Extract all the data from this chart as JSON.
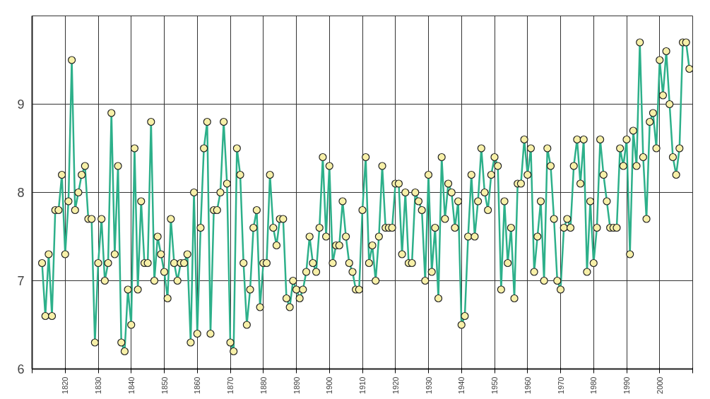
{
  "chart_data": {
    "type": "line",
    "x": [
      1813,
      1814,
      1815,
      1816,
      1817,
      1818,
      1819,
      1820,
      1821,
      1822,
      1823,
      1824,
      1825,
      1826,
      1827,
      1828,
      1829,
      1830,
      1831,
      1832,
      1833,
      1834,
      1835,
      1836,
      1837,
      1838,
      1839,
      1840,
      1841,
      1842,
      1843,
      1844,
      1845,
      1846,
      1847,
      1848,
      1849,
      1850,
      1851,
      1852,
      1853,
      1854,
      1855,
      1856,
      1857,
      1858,
      1859,
      1860,
      1861,
      1862,
      1863,
      1864,
      1865,
      1866,
      1867,
      1868,
      1869,
      1870,
      1871,
      1872,
      1873,
      1874,
      1875,
      1876,
      1877,
      1878,
      1879,
      1880,
      1881,
      1882,
      1883,
      1884,
      1885,
      1886,
      1887,
      1888,
      1889,
      1890,
      1891,
      1892,
      1893,
      1894,
      1895,
      1896,
      1897,
      1898,
      1899,
      1900,
      1901,
      1902,
      1903,
      1904,
      1905,
      1906,
      1907,
      1908,
      1909,
      1910,
      1911,
      1912,
      1913,
      1914,
      1915,
      1916,
      1917,
      1918,
      1919,
      1920,
      1921,
      1922,
      1923,
      1924,
      1925,
      1926,
      1927,
      1928,
      1929,
      1930,
      1931,
      1932,
      1933,
      1934,
      1935,
      1936,
      1937,
      1938,
      1939,
      1940,
      1941,
      1942,
      1943,
      1944,
      1945,
      1946,
      1947,
      1948,
      1949,
      1950,
      1951,
      1952,
      1953,
      1954,
      1955,
      1956,
      1957,
      1958,
      1959,
      1960,
      1961,
      1962,
      1963,
      1964,
      1965,
      1966,
      1967,
      1968,
      1969,
      1970,
      1971,
      1972,
      1973,
      1974,
      1975,
      1976,
      1977,
      1978,
      1979,
      1980,
      1981,
      1982,
      1983,
      1984,
      1985,
      1986,
      1987,
      1988,
      1989,
      1990,
      1991,
      1992,
      1993,
      1994,
      1995,
      1996,
      1997,
      1998,
      1999,
      2000,
      2001,
      2002,
      2003,
      2004,
      2005,
      2006,
      2007,
      2008,
      2009
    ],
    "series": [
      {
        "color": "#2db08a",
        "values": [
          7.2,
          6.6,
          7.3,
          6.6,
          7.8,
          7.8,
          8.2,
          7.3,
          7.9,
          9.5,
          7.8,
          8.0,
          8.2,
          8.3,
          7.7,
          7.7,
          6.3,
          7.2,
          7.7,
          7.0,
          7.2,
          8.9,
          7.3,
          8.3,
          6.3,
          6.2,
          6.9,
          6.5,
          8.5,
          6.9,
          7.9,
          7.2,
          7.2,
          8.8,
          7.0,
          7.5,
          7.3,
          7.1,
          6.8,
          7.7,
          7.2,
          7.0,
          7.2,
          7.2,
          7.3,
          6.3,
          8.0,
          6.4,
          7.6,
          8.5,
          8.8,
          6.4,
          7.8,
          7.8,
          8.0,
          8.8,
          8.1,
          6.3,
          6.2,
          8.5,
          8.2,
          7.2,
          6.5,
          6.9,
          7.6,
          7.8,
          6.7,
          7.2,
          7.2,
          8.2,
          7.6,
          7.4,
          7.7,
          7.7,
          6.8,
          6.7,
          7.0,
          6.9,
          6.8,
          6.9,
          7.1,
          7.5,
          7.2,
          7.1,
          7.6,
          8.4,
          7.5,
          8.3,
          7.2,
          7.4,
          7.4,
          7.9,
          7.5,
          7.2,
          7.1,
          6.9,
          6.9,
          7.8,
          8.4,
          7.2,
          7.4,
          7.0,
          7.5,
          8.3,
          7.6,
          7.6,
          7.6,
          8.1,
          8.1,
          7.3,
          8.0,
          7.2,
          7.2,
          8.0,
          7.9,
          7.8,
          7.0,
          8.2,
          7.1,
          7.6,
          6.8,
          8.4,
          7.7,
          8.1,
          8.0,
          7.6,
          7.9,
          6.5,
          6.6,
          7.5,
          8.2,
          7.5,
          7.9,
          8.5,
          8.0,
          7.8,
          8.2,
          8.4,
          8.3,
          6.9,
          7.9,
          7.2,
          7.6,
          6.8,
          8.1,
          8.1,
          8.6,
          8.2,
          8.5,
          7.1,
          7.5,
          7.9,
          7.0,
          8.5,
          8.3,
          7.7,
          7.0,
          6.9,
          7.6,
          7.7,
          7.6,
          8.3,
          8.6,
          8.1,
          8.6,
          7.1,
          7.9,
          7.2,
          7.6,
          8.6,
          8.2,
          7.9,
          7.6,
          7.6,
          7.6,
          8.5,
          8.3,
          8.6,
          7.3,
          8.7,
          8.3,
          9.7,
          8.4,
          7.7,
          8.8,
          8.9,
          8.5,
          9.5,
          9.1,
          9.6,
          9.0,
          8.4,
          8.2,
          8.5,
          9.7,
          9.7,
          9.4
        ]
      }
    ],
    "marker": "circle",
    "line_style": "solid",
    "grid": true,
    "xlim": [
      1810,
      2010
    ],
    "ylim": [
      6,
      10
    ],
    "xticks": [
      {
        "value": 1810,
        "label": null
      },
      1820,
      1830,
      1840,
      1850,
      1860,
      1870,
      1880,
      1890,
      1900,
      1910,
      1920,
      1930,
      1940,
      1950,
      1960,
      1970,
      1980,
      1990,
      2000,
      {
        "value": 2010,
        "label": null
      }
    ],
    "yticks": [
      6,
      7,
      8,
      9
    ]
  }
}
